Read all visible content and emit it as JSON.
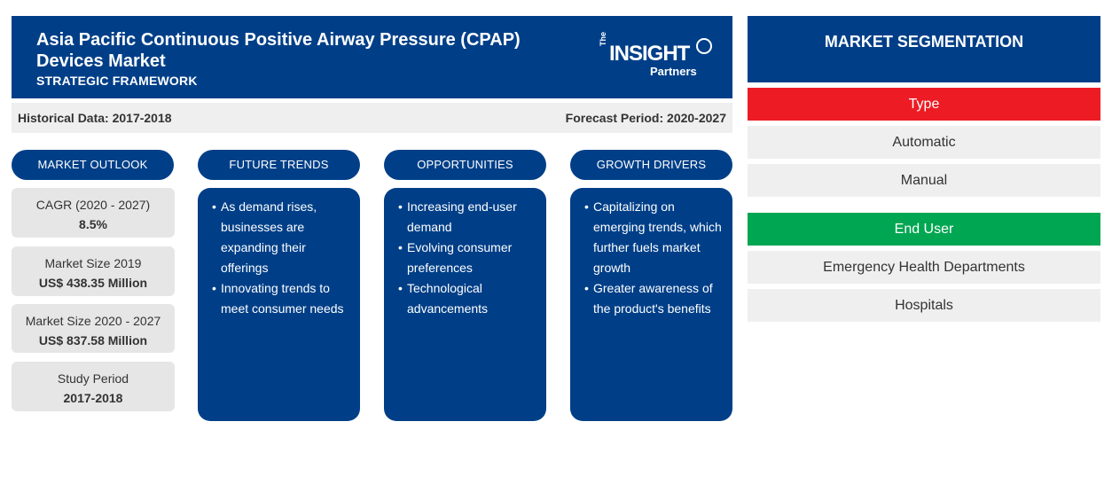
{
  "header": {
    "title": "Asia Pacific Continuous Positive Airway Pressure (CPAP) Devices Market",
    "subtitle": "STRATEGIC FRAMEWORK",
    "logo": {
      "the": "The",
      "insight": "INSIGHT",
      "partners": "Partners"
    }
  },
  "periods": {
    "historical": "Historical Data: 2017-2018",
    "forecast": "Forecast Period: 2020-2027"
  },
  "columns": {
    "market_outlook": "MARKET OUTLOOK",
    "future_trends": "FUTURE TRENDS",
    "opportunities": "OPPORTUNITIES",
    "growth_drivers": "GROWTH DRIVERS"
  },
  "outlook": [
    {
      "label": "CAGR (2020 - 2027)",
      "value": "8.5%"
    },
    {
      "label": "Market Size 2019",
      "value": "US$ 438.35 Million"
    },
    {
      "label": "Market Size 2020 - 2027",
      "value": "US$ 837.58 Million"
    },
    {
      "label": "Study Period",
      "value": "2017-2018"
    }
  ],
  "future_trends": [
    "As demand rises, businesses are expanding their offerings",
    "Innovating trends to meet consumer needs"
  ],
  "opportunities": [
    "Increasing end-user demand",
    "Evolving consumer preferences",
    "Technological advancements"
  ],
  "growth_drivers": [
    "Capitalizing on emerging trends, which further fuels market growth",
    "Greater awareness of the product's benefits"
  ],
  "segmentation": {
    "title": "MARKET SEGMENTATION",
    "type": {
      "label": "Type",
      "color": "#ed1c24",
      "items": [
        "Automatic",
        "Manual"
      ]
    },
    "end_user": {
      "label": "End User",
      "color": "#00a651",
      "items": [
        "Emergency Health Departments",
        "Hospitals"
      ]
    }
  },
  "colors": {
    "primary": "#003f88",
    "panel_grey": "#e6e6e6",
    "light_grey": "#efefef"
  }
}
